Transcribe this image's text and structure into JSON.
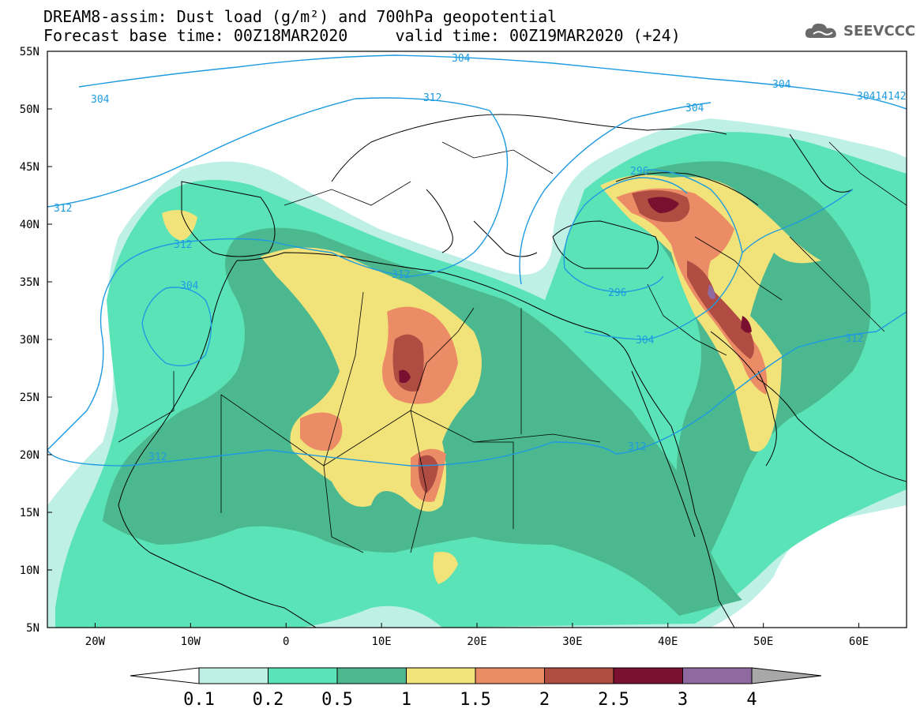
{
  "header": {
    "title_line1": "DREAM8-assim: Dust load (g/m²) and 700hPa geopotential",
    "title_line2": "Forecast base time: 00Z18MAR2020     valid time: 00Z19MAR2020 (+24)",
    "logo_text": "SEEVCCC",
    "logo_icon": "cloud-icon"
  },
  "map": {
    "lat_labels": [
      "55N",
      "50N",
      "45N",
      "40N",
      "35N",
      "30N",
      "25N",
      "20N",
      "15N",
      "10N",
      "5N"
    ],
    "lon_labels": [
      "20W",
      "10W",
      "0",
      "10E",
      "20E",
      "30E",
      "40E",
      "50E",
      "60E"
    ],
    "extent": {
      "lon_min": -25,
      "lon_max": 65,
      "lat_min": 5,
      "lat_max": 55
    },
    "contour_labels": [
      "304",
      "304",
      "312",
      "304",
      "304",
      "312",
      "312",
      "296",
      "312",
      "304",
      "296",
      "304",
      "312",
      "312",
      "312",
      "30414142"
    ]
  },
  "colorbar": {
    "labels": [
      "0.1",
      "0.2",
      "0.5",
      "1",
      "1.5",
      "2",
      "2.5",
      "3",
      "4"
    ],
    "colors": [
      "#bff0e6",
      "#5be3b8",
      "#4bb88f",
      "#f2e27a",
      "#eb8c66",
      "#b04c42",
      "#7a0f30",
      "#8e6aa0"
    ],
    "underflow_color": "#ffffff",
    "overflow_color": "#a8a8a8"
  },
  "palette": {
    "contour": "#1e9be0",
    "border": "#000000"
  }
}
